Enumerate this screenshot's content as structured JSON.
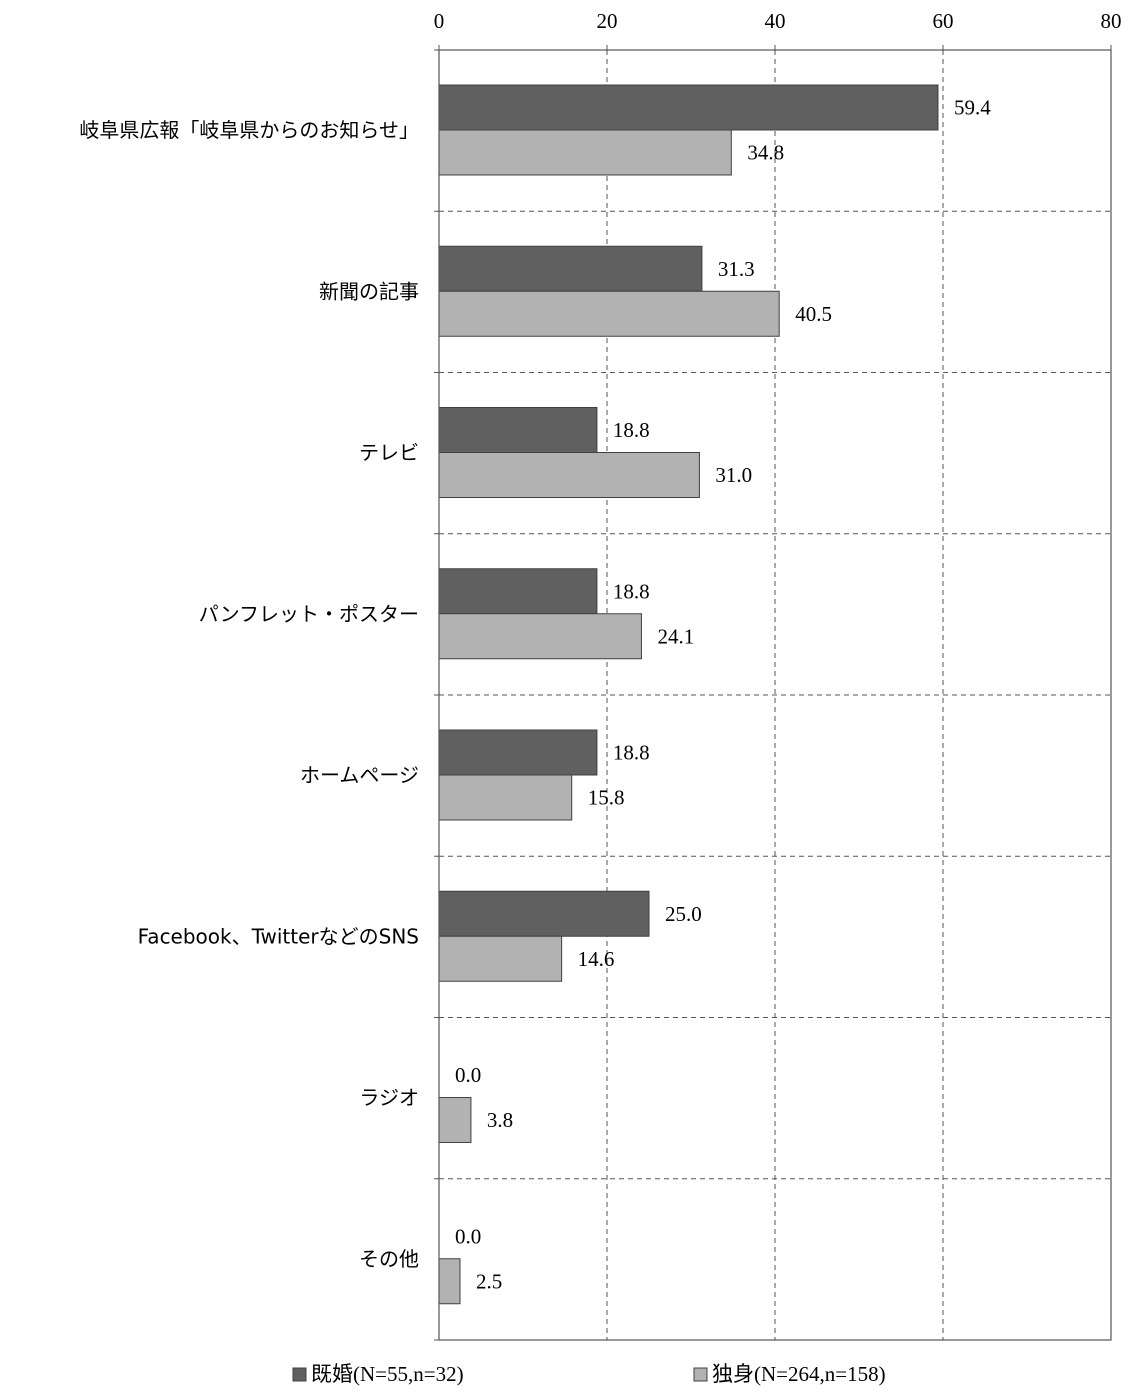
{
  "chart_data": {
    "type": "bar",
    "orientation": "horizontal",
    "categories": [
      "岐阜県広報「岐阜県からのお知らせ」",
      "新聞の記事",
      "テレビ",
      "パンフレット・ポスター",
      "ホームページ",
      "Facebook、TwitterなどのSNS",
      "ラジオ",
      "その他"
    ],
    "series": [
      {
        "name": "既婚(N=55,n=32)",
        "color": "#606060",
        "values": [
          59.4,
          31.3,
          18.8,
          18.8,
          18.8,
          25.0,
          0.0,
          0.0
        ]
      },
      {
        "name": "独身(N=264,n=158)",
        "color": "#b2b2b2",
        "values": [
          34.8,
          40.5,
          31.0,
          24.1,
          15.8,
          14.6,
          3.8,
          2.5
        ]
      }
    ],
    "value_labels": [
      [
        "59.4",
        "31.3",
        "18.8",
        "18.8",
        "18.8",
        "25.0",
        "0.0",
        "0.0"
      ],
      [
        "34.8",
        "40.5",
        "31.0",
        "24.1",
        "15.8",
        "14.6",
        "3.8",
        "2.5"
      ]
    ],
    "xlim": [
      0,
      80
    ],
    "x_ticks": [
      "0",
      "20",
      "40",
      "60",
      "80"
    ],
    "x_axis_position": "top",
    "grid": true,
    "grid_style": "dashed",
    "legend_position": "bottom",
    "legend": [
      "既婚(N=55,n=32)",
      "独身(N=264,n=158)"
    ]
  }
}
